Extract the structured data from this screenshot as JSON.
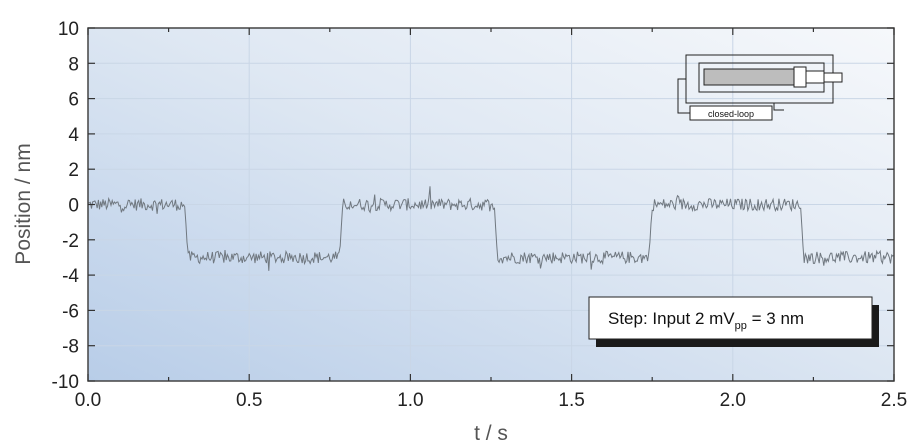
{
  "chart_data": {
    "type": "line",
    "title": "",
    "xlabel": "t / s",
    "ylabel": "Position / nm",
    "xlim": [
      0.0,
      2.5
    ],
    "ylim": [
      -10,
      10
    ],
    "x_ticks": [
      "0.0",
      "0.5",
      "1.0",
      "1.5",
      "2.0",
      "2.5"
    ],
    "y_ticks": [
      "10",
      "8",
      "6",
      "4",
      "2",
      "0",
      "-2",
      "-4",
      "-6",
      "-8",
      "-10"
    ],
    "grid": true,
    "noise_amplitude_nm": 0.35,
    "series": [
      {
        "x": [
          0.0,
          0.3,
          0.31,
          0.78,
          0.79,
          1.26,
          1.27,
          1.74,
          1.75,
          2.21,
          2.22,
          2.5
        ],
        "y": [
          0,
          0,
          -3,
          -3,
          0,
          0,
          -3,
          -3,
          0,
          0,
          -3,
          -3
        ],
        "color": "#707880"
      }
    ],
    "annotations": {
      "step_box": {
        "prefix": "Step: Input 2 mV",
        "subscript": "pp",
        "suffix": " = 3 nm"
      },
      "inset_label": "closed-loop"
    }
  }
}
